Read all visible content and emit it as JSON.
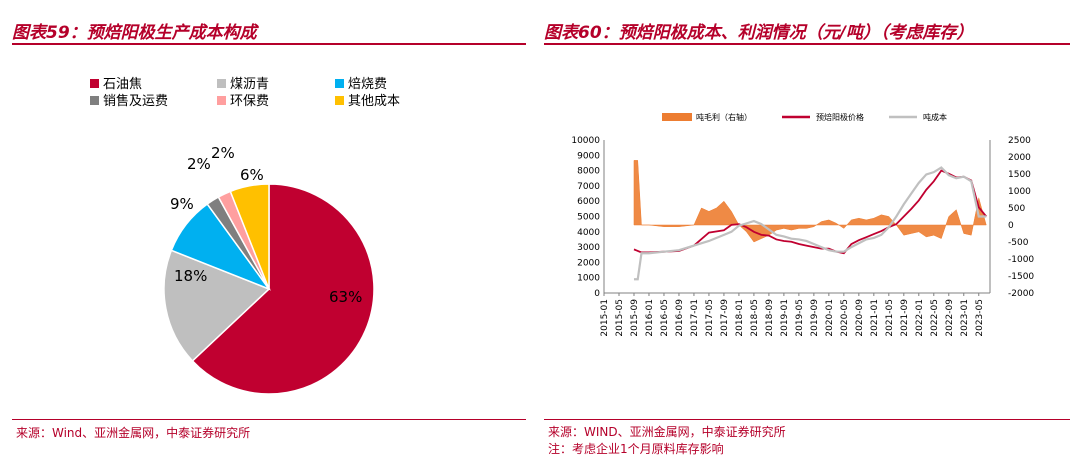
{
  "left": {
    "title": "图表59：预焙阳极生产成本构成",
    "source": "来源：Wind、亚洲金属网，中泰证券研究所",
    "chart_data": {
      "type": "pie",
      "title": "",
      "slices": [
        {
          "label": "石油焦",
          "value": 63,
          "display": "63%",
          "color": "#c00030"
        },
        {
          "label": "煤沥青",
          "value": 18,
          "display": "18%",
          "color": "#bfbfbf"
        },
        {
          "label": "焙烧费",
          "value": 9,
          "display": "9%",
          "color": "#00b0f0"
        },
        {
          "label": "销售及运费",
          "value": 2,
          "display": "2%",
          "color": "#7f7f7f"
        },
        {
          "label": "环保费",
          "value": 2,
          "display": "2%",
          "color": "#ff9f9f"
        },
        {
          "label": "其他成本",
          "value": 6,
          "display": "6%",
          "color": "#ffc000"
        }
      ],
      "legend_position": "top"
    }
  },
  "right": {
    "title": "图表60：预焙阳极成本、利润情况（元/吨）（考虑库存）",
    "source": "来源：WIND、亚洲金属网，中泰证券研究所",
    "note": "注：考虑企业1个月原料库存影响",
    "chart_data": {
      "type": "line",
      "title": "",
      "legend_position": "top",
      "x_ticks": [
        "2015-01",
        "2015-05",
        "2015-09",
        "2016-01",
        "2016-05",
        "2016-09",
        "2017-01",
        "2017-05",
        "2017-09",
        "2018-01",
        "2018-05",
        "2018-09",
        "2019-01",
        "2019-05",
        "2019-09",
        "2020-01",
        "2020-05",
        "2020-09",
        "2021-01",
        "2021-05",
        "2021-09",
        "2022-01",
        "2022-05",
        "2022-09",
        "2023-01",
        "2023-05"
      ],
      "y_left": {
        "min": 0,
        "max": 10000,
        "ticks": [
          "0",
          "1000",
          "2000",
          "3000",
          "4000",
          "5000",
          "6000",
          "7000",
          "8000",
          "9000",
          "10000"
        ]
      },
      "y_right": {
        "min": -2000,
        "max": 2500,
        "ticks": [
          "-2000",
          "-1500",
          "-1000",
          "-500",
          "0",
          "500",
          "1000",
          "1500",
          "2000",
          "2500"
        ]
      },
      "series": [
        {
          "name": "吨毛利（右轴）",
          "type": "area",
          "axis": "right",
          "color": "#ed7d31",
          "x": [
            "2015-09",
            "2015-10",
            "2015-11",
            "2016-01",
            "2016-05",
            "2016-09",
            "2017-01",
            "2017-03",
            "2017-05",
            "2017-07",
            "2017-09",
            "2017-11",
            "2018-01",
            "2018-03",
            "2018-05",
            "2018-07",
            "2018-09",
            "2018-11",
            "2019-01",
            "2019-03",
            "2019-05",
            "2019-07",
            "2019-09",
            "2019-11",
            "2020-01",
            "2020-03",
            "2020-05",
            "2020-07",
            "2020-09",
            "2020-11",
            "2021-01",
            "2021-03",
            "2021-05",
            "2021-07",
            "2021-09",
            "2021-11",
            "2022-01",
            "2022-03",
            "2022-05",
            "2022-07",
            "2022-09",
            "2022-11",
            "2023-01",
            "2023-03",
            "2023-05",
            "2023-07"
          ],
          "y": [
            1900,
            1900,
            0,
            0,
            -50,
            -50,
            0,
            500,
            400,
            500,
            700,
            400,
            0,
            -200,
            -500,
            -400,
            -300,
            -150,
            -100,
            -150,
            -100,
            -100,
            -50,
            100,
            150,
            50,
            -100,
            150,
            200,
            150,
            200,
            300,
            250,
            0,
            -300,
            -250,
            -200,
            -350,
            -300,
            -400,
            250,
            450,
            -250,
            -300,
            800,
            0
          ]
        },
        {
          "name": "预焙阳极价格",
          "type": "line",
          "axis": "left",
          "color": "#c00030",
          "x": [
            "2015-09",
            "2015-11",
            "2016-01",
            "2016-05",
            "2016-09",
            "2017-01",
            "2017-05",
            "2017-09",
            "2017-11",
            "2018-01",
            "2018-03",
            "2018-05",
            "2018-07",
            "2018-09",
            "2018-11",
            "2019-01",
            "2019-03",
            "2019-05",
            "2019-07",
            "2019-09",
            "2019-11",
            "2020-01",
            "2020-03",
            "2020-05",
            "2020-07",
            "2020-09",
            "2020-11",
            "2021-01",
            "2021-03",
            "2021-05",
            "2021-07",
            "2021-09",
            "2021-11",
            "2022-01",
            "2022-03",
            "2022-05",
            "2022-07",
            "2022-09",
            "2022-11",
            "2023-01",
            "2023-03",
            "2023-05",
            "2023-07"
          ],
          "y": [
            2850,
            2650,
            2650,
            2700,
            2750,
            3100,
            3950,
            4100,
            4450,
            4500,
            4300,
            4000,
            3800,
            3750,
            3500,
            3400,
            3350,
            3200,
            3100,
            3000,
            2900,
            2900,
            2700,
            2600,
            3200,
            3450,
            3650,
            3850,
            4050,
            4300,
            4500,
            5000,
            5500,
            6050,
            6750,
            7300,
            8000,
            7800,
            7550,
            7600,
            7350,
            5600,
            5000
          ]
        },
        {
          "name": "吨成本",
          "type": "line",
          "axis": "left",
          "color": "#c0c0c0",
          "x": [
            "2015-09",
            "2015-10",
            "2015-11",
            "2016-01",
            "2016-05",
            "2016-09",
            "2017-01",
            "2017-05",
            "2017-09",
            "2017-11",
            "2018-01",
            "2018-03",
            "2018-05",
            "2018-07",
            "2018-09",
            "2018-11",
            "2019-01",
            "2019-03",
            "2019-05",
            "2019-07",
            "2019-09",
            "2019-11",
            "2020-01",
            "2020-03",
            "2020-05",
            "2020-07",
            "2020-09",
            "2020-11",
            "2021-01",
            "2021-03",
            "2021-05",
            "2021-07",
            "2021-09",
            "2021-11",
            "2022-01",
            "2022-03",
            "2022-05",
            "2022-07",
            "2022-09",
            "2022-11",
            "2023-01",
            "2023-03",
            "2023-05",
            "2023-07"
          ],
          "y": [
            900,
            900,
            2600,
            2600,
            2700,
            2800,
            3100,
            3400,
            3800,
            4000,
            4400,
            4550,
            4700,
            4500,
            4150,
            3800,
            3700,
            3550,
            3500,
            3400,
            3200,
            3000,
            2800,
            2700,
            2700,
            3000,
            3250,
            3500,
            3600,
            3800,
            4300,
            5000,
            5800,
            6500,
            7200,
            7750,
            7900,
            8200,
            7700,
            7500,
            7600,
            7300,
            5000,
            5000
          ]
        }
      ]
    }
  }
}
